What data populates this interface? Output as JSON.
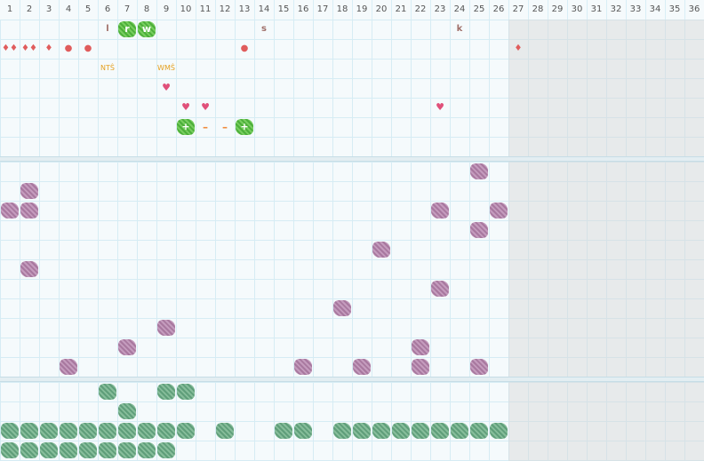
{
  "header": {
    "columns": [
      "1",
      "2",
      "3",
      "4",
      "5",
      "6",
      "7",
      "8",
      "9",
      "10",
      "11",
      "12",
      "13",
      "14",
      "15",
      "16",
      "17",
      "18",
      "19",
      "20",
      "21",
      "22",
      "23",
      "24",
      "25",
      "26",
      "27",
      "28",
      "29",
      "30",
      "31",
      "32",
      "33",
      "34",
      "35",
      "36"
    ]
  },
  "colors": {
    "mauve": "#b383ab",
    "green": "#6daa87",
    "bright_green": "#5cbf45",
    "red_mark": "#e05c5c",
    "heart": "#e0507a",
    "tag": "#e5a020"
  },
  "top_marks": [
    {
      "kind": "letter",
      "text": "l"
    },
    {
      "kind": "blob",
      "text": "r"
    },
    {
      "kind": "blob",
      "text": "w"
    },
    {
      "kind": "letter",
      "text": "s"
    },
    {
      "kind": "letter",
      "text": "k"
    },
    {
      "kind": "red",
      "text": "♦♦"
    },
    {
      "kind": "red",
      "text": "♦♦"
    },
    {
      "kind": "red",
      "text": "♦"
    },
    {
      "kind": "red",
      "text": "●"
    },
    {
      "kind": "red",
      "text": "●"
    },
    {
      "kind": "red",
      "text": "●"
    },
    {
      "kind": "red",
      "text": "♦"
    },
    {
      "kind": "tag",
      "text": "NTŜ"
    },
    {
      "kind": "tag",
      "text": "WMŜ"
    },
    {
      "kind": "heart",
      "text": "♥"
    },
    {
      "kind": "heart",
      "text": "♥"
    },
    {
      "kind": "heart",
      "text": "♥"
    },
    {
      "kind": "heart",
      "text": "♥"
    },
    {
      "kind": "blob",
      "text": "+"
    },
    {
      "kind": "dash",
      "text": "–"
    },
    {
      "kind": "dash",
      "text": "–"
    },
    {
      "kind": "blob",
      "text": "+"
    },
    {
      "kind": "red",
      "text": "ı"
    }
  ]
}
